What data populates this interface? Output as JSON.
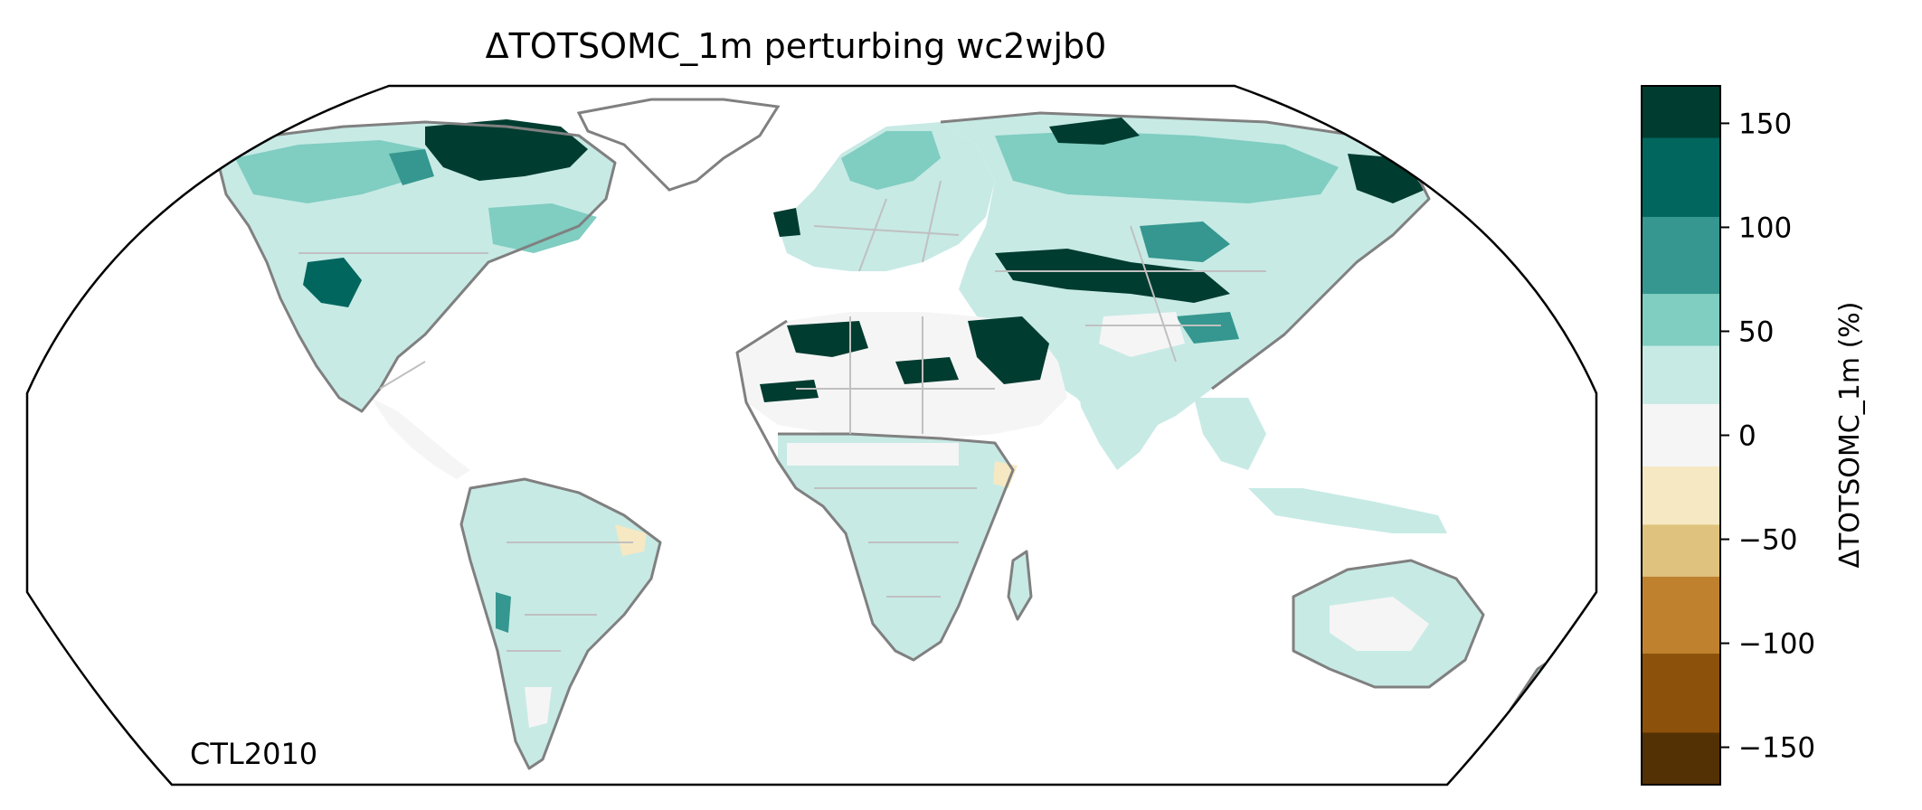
{
  "title": "ΔTOTSOMC_1m perturbing wc2wjb0",
  "run_label": "CTL2010",
  "colorbar": {
    "label": "ΔTOTSOMC_1m (%)",
    "tick_labels": [
      "150",
      "100",
      "50",
      "0",
      "−50",
      "−100",
      "−150"
    ],
    "tick_values": [
      150,
      100,
      50,
      0,
      -50,
      -100,
      -150
    ],
    "range": [
      -168,
      168
    ],
    "bins": [
      {
        "from": 143,
        "to": 168,
        "color": "#003c30"
      },
      {
        "from": 105,
        "to": 143,
        "color": "#01665e"
      },
      {
        "from": 68,
        "to": 105,
        "color": "#35978f"
      },
      {
        "from": 43,
        "to": 68,
        "color": "#80cdc1"
      },
      {
        "from": 15,
        "to": 43,
        "color": "#c7eae5"
      },
      {
        "from": -15,
        "to": 15,
        "color": "#f5f5f5"
      },
      {
        "from": -43,
        "to": -15,
        "color": "#f6e8c3"
      },
      {
        "from": -68,
        "to": -43,
        "color": "#dfc27d"
      },
      {
        "from": -105,
        "to": -68,
        "color": "#bf812d"
      },
      {
        "from": -143,
        "to": -105,
        "color": "#8c510a"
      },
      {
        "from": -168,
        "to": -143,
        "color": "#543005"
      }
    ]
  },
  "map": {
    "projection": "Robinson",
    "coastline_color": "#808080",
    "border_color": "#c0c0c0",
    "ocean_color": "#ffffff"
  }
}
